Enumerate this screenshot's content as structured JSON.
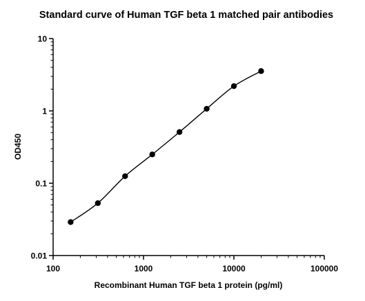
{
  "chart_data": {
    "type": "scatter",
    "title": "Standard curve of Human TGF beta 1 matched pair antibodies",
    "xlabel": "Recombinant Human TGF beta 1 protein (pg/ml)",
    "ylabel": "OD450",
    "x_scale": "log",
    "y_scale": "log",
    "xlim": [
      100,
      100000
    ],
    "ylim": [
      0.01,
      10
    ],
    "x_ticks": [
      "100",
      "1000",
      "10000",
      "100000"
    ],
    "y_ticks": [
      "0.01",
      "0.1",
      "1",
      "10"
    ],
    "grid": false,
    "legend": "none",
    "fit_line": true,
    "series": [
      {
        "x": [
          156.25,
          312.5,
          625,
          1250,
          2500,
          5000,
          10000,
          20000
        ],
        "y": [
          0.029,
          0.053,
          0.125,
          0.25,
          0.51,
          1.07,
          2.2,
          3.55
        ]
      }
    ]
  }
}
